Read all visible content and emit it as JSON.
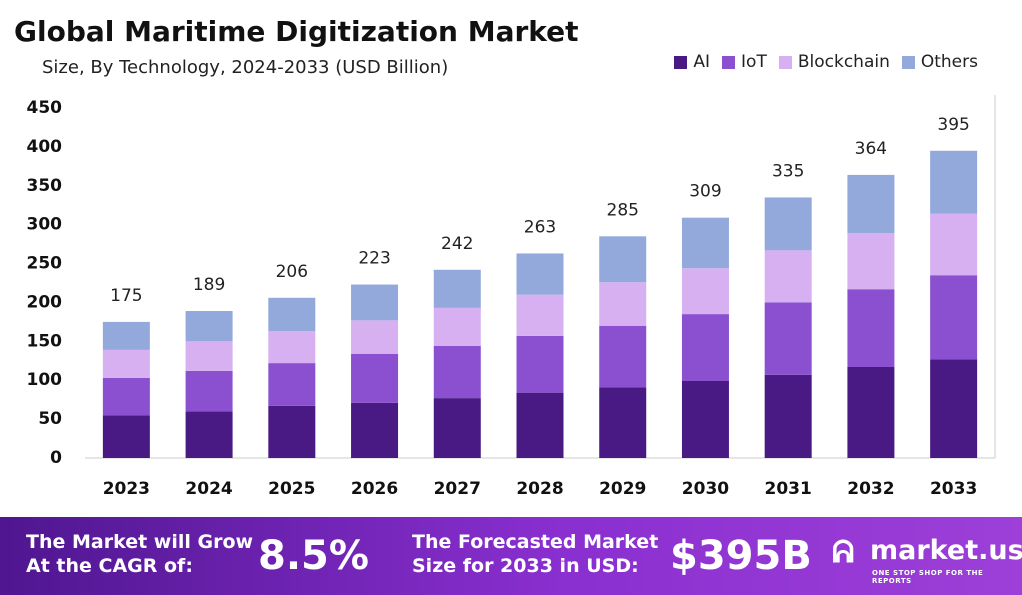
{
  "chart_data": {
    "type": "stacked_bar",
    "title": "Global Maritime Digitization Market",
    "subtitle": "Size, By Technology, 2024-2033 (USD Billion)",
    "categories": [
      "2023",
      "2024",
      "2025",
      "2026",
      "2027",
      "2028",
      "2029",
      "2030",
      "2031",
      "2032",
      "2033"
    ],
    "series": [
      {
        "name": "AI",
        "color": "#4a1a84",
        "values": [
          55,
          60,
          67,
          71,
          77,
          84,
          91,
          99,
          107,
          117,
          127
        ]
      },
      {
        "name": "IoT",
        "color": "#8a50d0",
        "values": [
          48,
          52,
          55,
          63,
          67,
          73,
          79,
          86,
          93,
          100,
          108
        ]
      },
      {
        "name": "Blockchain",
        "color": "#d6b0f0",
        "values": [
          36,
          38,
          41,
          43,
          49,
          53,
          56,
          59,
          67,
          72,
          79
        ]
      },
      {
        "name": "Others",
        "color": "#93a9db",
        "values": [
          36,
          39,
          43,
          46,
          49,
          53,
          59,
          65,
          68,
          75,
          81
        ]
      }
    ],
    "totals": [
      175,
      189,
      206,
      223,
      242,
      263,
      285,
      309,
      335,
      364,
      395
    ],
    "ylim": [
      0,
      450
    ],
    "yticks": [
      0,
      50,
      100,
      150,
      200,
      250,
      300,
      350,
      400,
      450
    ],
    "grid": false,
    "legend": "top-right"
  },
  "footer": {
    "cagr_text": [
      "The Market will Grow",
      "At the CAGR of:"
    ],
    "cagr_value": "8.5%",
    "forecast_text": [
      "The Forecasted Market",
      "Size for 2033 in USD:"
    ],
    "forecast_value": "$395B",
    "brand": "market.us",
    "tagline": "ONE STOP SHOP FOR THE REPORTS"
  }
}
